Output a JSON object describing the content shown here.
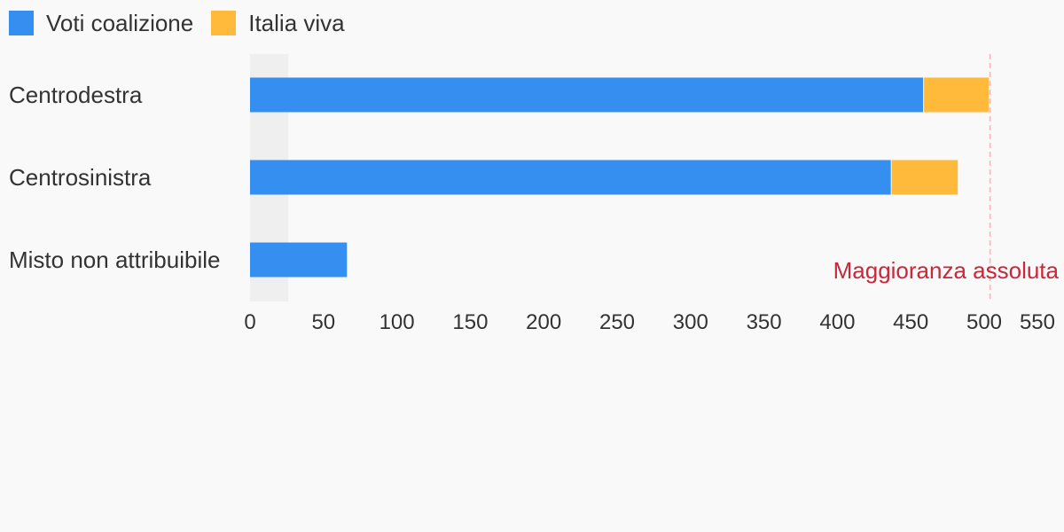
{
  "chart_data": {
    "type": "bar",
    "orientation": "horizontal",
    "stacked": true,
    "categories": [
      "Centrodestra",
      "Centrosinistra",
      "Misto non attribuibile"
    ],
    "series": [
      {
        "name": "Voti coalizione",
        "color": "#358ff0",
        "values": [
          459,
          437,
          66
        ]
      },
      {
        "name": "Italia viva",
        "color": "#ffb93b",
        "values": [
          44,
          45,
          0
        ]
      }
    ],
    "xlim": [
      0,
      550
    ],
    "xticks": [
      0,
      50,
      100,
      150,
      200,
      250,
      300,
      350,
      400,
      450,
      500,
      550
    ],
    "highlight_band": [
      0,
      26
    ],
    "reference_line": {
      "value": 504,
      "label": "Maggioranza assoluta",
      "color": "#c8283a"
    },
    "legend_position": "top-left",
    "grid": false
  }
}
